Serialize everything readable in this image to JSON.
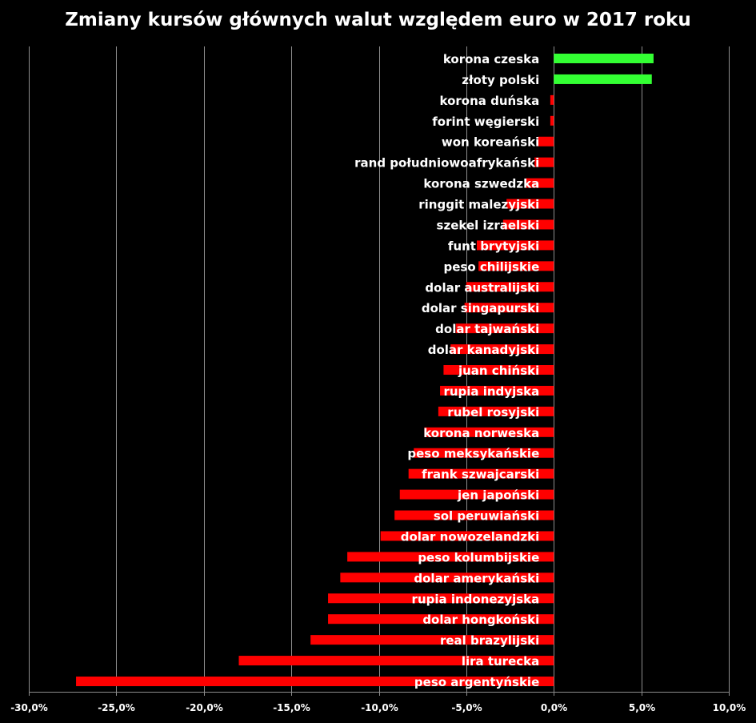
{
  "chart_data": {
    "type": "bar",
    "orientation": "horizontal",
    "title": "Zmiany kursów głównych walut względem euro w 2017 roku",
    "xlabel": "",
    "ylabel": "",
    "xlim": [
      -30,
      10
    ],
    "x_ticks": [
      "-30,0%",
      "-25,0%",
      "-20,0%",
      "-15,0%",
      "-10,0%",
      "-5,0%",
      "0,0%",
      "5,0%",
      "10,0%"
    ],
    "x_tick_values": [
      -30,
      -25,
      -20,
      -15,
      -10,
      -5,
      0,
      5,
      10
    ],
    "grid": true,
    "legend": "none",
    "categories": [
      "korona czeska",
      "złoty polski",
      "korona duńska",
      "forint węgierski",
      "won koreański",
      "rand południowoafrykański",
      "korona szwedzka",
      "ringgit malezyjski",
      "szekel izraelski",
      "funt brytyjski",
      "peso chilijskie",
      "dolar australijski",
      "dolar singapurski",
      "dolar tajwański",
      "dolar kanadyjski",
      "juan chiński",
      "rupia indyjska",
      "rubel rosyjski",
      "korona norweska",
      "peso meksykańskie",
      "frank szwajcarski",
      "jen japoński",
      "sol peruwiański",
      "dolar nowozelandzki",
      "peso kolumbijskie",
      "dolar amerykański",
      "rupia indonezyjska",
      "dolar hongkoński",
      "real brazylijski",
      "lira turecka",
      "peso argentyńskie"
    ],
    "values": [
      5.7,
      5.6,
      -0.2,
      -0.2,
      -0.9,
      -1.1,
      -1.6,
      -2.7,
      -2.9,
      -4.4,
      -4.3,
      -5.0,
      -5.1,
      -5.6,
      -5.9,
      -6.3,
      -6.5,
      -6.6,
      -7.4,
      -8.0,
      -8.3,
      -8.8,
      -9.1,
      -9.9,
      -11.8,
      -12.2,
      -12.9,
      -12.9,
      -13.9,
      -18.0,
      -27.3
    ],
    "colors": {
      "positive": "#33ff33",
      "negative": "#ff0000",
      "grid": "#8c8c8c",
      "background": "#000000",
      "text": "#ffffff"
    }
  }
}
